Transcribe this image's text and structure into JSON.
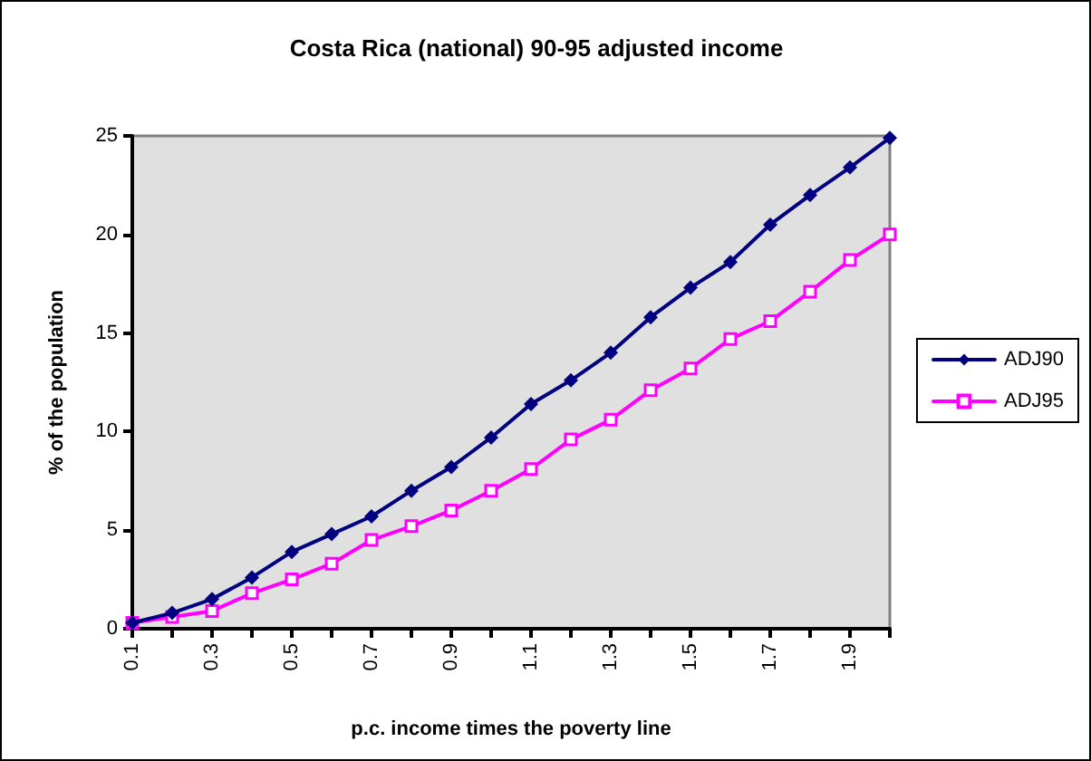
{
  "chart_data": {
    "type": "line",
    "title": "Costa Rica (national) 90-95 adjusted income",
    "xlabel": "p.c. income times the poverty line",
    "ylabel": "% of the population",
    "categories": [
      "0.1",
      null,
      "0.3",
      null,
      "0.5",
      null,
      "0.7",
      null,
      "0.9",
      null,
      "1.1",
      null,
      "1.3",
      null,
      "1.5",
      null,
      "1.7",
      null,
      "1.9",
      null
    ],
    "series": [
      {
        "name": "ADJ90",
        "color": "#000080",
        "marker": "diamond",
        "values": [
          0.3,
          0.8,
          1.5,
          2.6,
          3.9,
          4.8,
          5.7,
          7.0,
          8.2,
          9.7,
          11.4,
          12.6,
          14.0,
          15.8,
          17.3,
          18.6,
          20.5,
          22.0,
          23.4,
          24.9
        ]
      },
      {
        "name": "ADJ95",
        "color": "#ff00ff",
        "marker": "square",
        "values": [
          0.3,
          0.6,
          0.9,
          1.8,
          2.5,
          3.3,
          4.5,
          5.2,
          6.0,
          7.0,
          8.1,
          9.6,
          10.6,
          12.1,
          13.2,
          14.7,
          15.6,
          17.1,
          18.7,
          20.0
        ]
      }
    ],
    "ylim": [
      0,
      25
    ],
    "yticks": [
      0,
      5,
      10,
      15,
      20,
      25
    ],
    "grid": false,
    "legend": "right",
    "line_style": "solid"
  }
}
